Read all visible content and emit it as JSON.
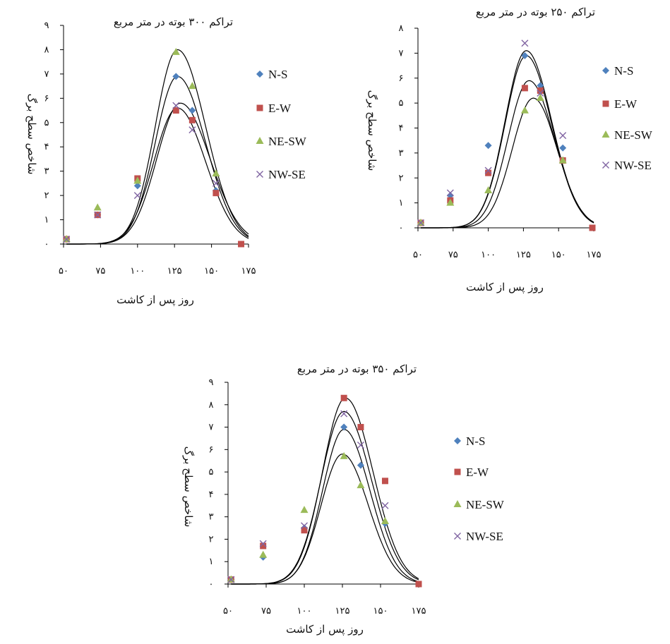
{
  "colors": {
    "N-S": "#4f81bd",
    "E-W": "#c0504d",
    "NE-SW": "#9bbb59",
    "NW-SE": "#8064a2",
    "curve": "#000000"
  },
  "chart_data": [
    {
      "type": "scatter",
      "title": "تراکم ۳۰۰ بوته در متر مربع",
      "xlabel": "روز پس از کاشت",
      "ylabel": "شاخص سطح برگ",
      "xlim": [
        50,
        175
      ],
      "ylim": [
        0,
        9
      ],
      "xticks": [
        "۵۰",
        "۷۵",
        "۱۰۰",
        "۱۲۵",
        "۱۵۰",
        "۱۷۵"
      ],
      "yticks": [
        "۰",
        "۱",
        "۲",
        "۳",
        "۴",
        "۵",
        "۶",
        "۷",
        "۸",
        "۹"
      ],
      "legend": "right",
      "series": [
        {
          "name": "N-S",
          "marker": "diamond",
          "x": [
            52,
            73,
            100,
            126,
            137,
            153
          ],
          "y": [
            0.2,
            1.2,
            2.4,
            6.9,
            5.5,
            2.2
          ]
        },
        {
          "name": "E-W",
          "marker": "square",
          "x": [
            52,
            73,
            100,
            126,
            137,
            153,
            170
          ],
          "y": [
            0.2,
            1.2,
            2.7,
            5.5,
            5.1,
            2.1,
            0.0
          ]
        },
        {
          "name": "NE-SW",
          "marker": "triangle",
          "x": [
            52,
            73,
            100,
            126,
            137,
            153
          ],
          "y": [
            0.2,
            1.5,
            2.6,
            7.9,
            6.5,
            2.9
          ]
        },
        {
          "name": "NW-SE",
          "marker": "x",
          "x": [
            52,
            73,
            100,
            126,
            137,
            153
          ],
          "y": [
            0.2,
            1.2,
            2.0,
            5.7,
            4.7,
            2.5
          ]
        }
      ],
      "curves": [
        {
          "peak": 8.0,
          "x0": 127,
          "sl": 15,
          "sr": 19
        },
        {
          "peak": 6.9,
          "x0": 127,
          "sl": 15,
          "sr": 19
        },
        {
          "peak": 5.8,
          "x0": 129,
          "sl": 16,
          "sr": 20
        },
        {
          "peak": 5.6,
          "x0": 127,
          "sl": 16,
          "sr": 19
        }
      ]
    },
    {
      "type": "scatter",
      "title": "تراکم ۲۵۰ بوته در متر مربع",
      "xlabel": "روز پس از کاشت",
      "ylabel": "شاخص سطح برگ",
      "xlim": [
        50,
        175
      ],
      "ylim": [
        0,
        8
      ],
      "xticks": [
        "۵۰",
        "۷۵",
        "۱۰۰",
        "۱۲۵",
        "۱۵۰",
        "۱۷۵"
      ],
      "yticks": [
        "۰",
        "۱",
        "۲",
        "۳",
        "۴",
        "۵",
        "۶",
        "۷",
        "۸"
      ],
      "legend": "right",
      "series": [
        {
          "name": "N-S",
          "marker": "diamond",
          "x": [
            52,
            73,
            100,
            126,
            137,
            153
          ],
          "y": [
            0.2,
            1.3,
            3.3,
            6.9,
            5.7,
            3.2
          ]
        },
        {
          "name": "E-W",
          "marker": "square",
          "x": [
            52,
            73,
            100,
            126,
            137,
            153,
            174
          ],
          "y": [
            0.2,
            1.1,
            2.2,
            5.6,
            5.5,
            2.7,
            0.0
          ]
        },
        {
          "name": "NE-SW",
          "marker": "triangle",
          "x": [
            52,
            73,
            100,
            126,
            137,
            153
          ],
          "y": [
            0.2,
            1.0,
            1.5,
            4.7,
            5.2,
            2.7
          ]
        },
        {
          "name": "NW-SE",
          "marker": "x",
          "x": [
            52,
            73,
            100,
            126,
            137,
            153
          ],
          "y": [
            0.2,
            1.4,
            2.3,
            7.4,
            5.4,
            3.7
          ]
        }
      ],
      "curves": [
        {
          "peak": 7.1,
          "x0": 127,
          "sl": 15,
          "sr": 18
        },
        {
          "peak": 6.9,
          "x0": 127,
          "sl": 15,
          "sr": 18
        },
        {
          "peak": 5.9,
          "x0": 129,
          "sl": 15,
          "sr": 18
        },
        {
          "peak": 5.2,
          "x0": 132,
          "sl": 15,
          "sr": 17
        }
      ]
    },
    {
      "type": "scatter",
      "title": "تراکم ۳۵۰ بوته در متر مربع",
      "xlabel": "روز پس از کاشت",
      "ylabel": "شاخص سطح برگ",
      "xlim": [
        50,
        175
      ],
      "ylim": [
        0,
        9
      ],
      "xticks": [
        "۵۰",
        "۷۵",
        "۱۰۰",
        "۱۲۵",
        "۱۵۰",
        "۱۷۵"
      ],
      "yticks": [
        "۰",
        "۱",
        "۲",
        "۳",
        "۴",
        "۵",
        "۶",
        "۷",
        "۸",
        "۹"
      ],
      "legend": "right",
      "series": [
        {
          "name": "N-S",
          "marker": "diamond",
          "x": [
            52,
            73,
            100,
            126,
            137,
            153
          ],
          "y": [
            0.2,
            1.2,
            2.5,
            7.0,
            5.3,
            2.7
          ]
        },
        {
          "name": "E-W",
          "marker": "square",
          "x": [
            52,
            73,
            100,
            126,
            137,
            153,
            175
          ],
          "y": [
            0.2,
            1.7,
            2.4,
            8.3,
            7.0,
            4.6,
            0.0
          ]
        },
        {
          "name": "NE-SW",
          "marker": "triangle",
          "x": [
            52,
            73,
            100,
            126,
            137,
            153
          ],
          "y": [
            0.2,
            1.3,
            3.3,
            5.7,
            4.4,
            2.8
          ]
        },
        {
          "name": "NW-SE",
          "marker": "x",
          "x": [
            52,
            73,
            100,
            126,
            137,
            153
          ],
          "y": [
            0.2,
            1.8,
            2.6,
            7.6,
            6.2,
            3.5
          ]
        }
      ],
      "curves": [
        {
          "peak": 8.3,
          "x0": 127,
          "sl": 15,
          "sr": 18
        },
        {
          "peak": 7.7,
          "x0": 126,
          "sl": 15,
          "sr": 18
        },
        {
          "peak": 6.9,
          "x0": 126,
          "sl": 14,
          "sr": 17
        },
        {
          "peak": 5.8,
          "x0": 125,
          "sl": 14,
          "sr": 17
        }
      ]
    }
  ]
}
